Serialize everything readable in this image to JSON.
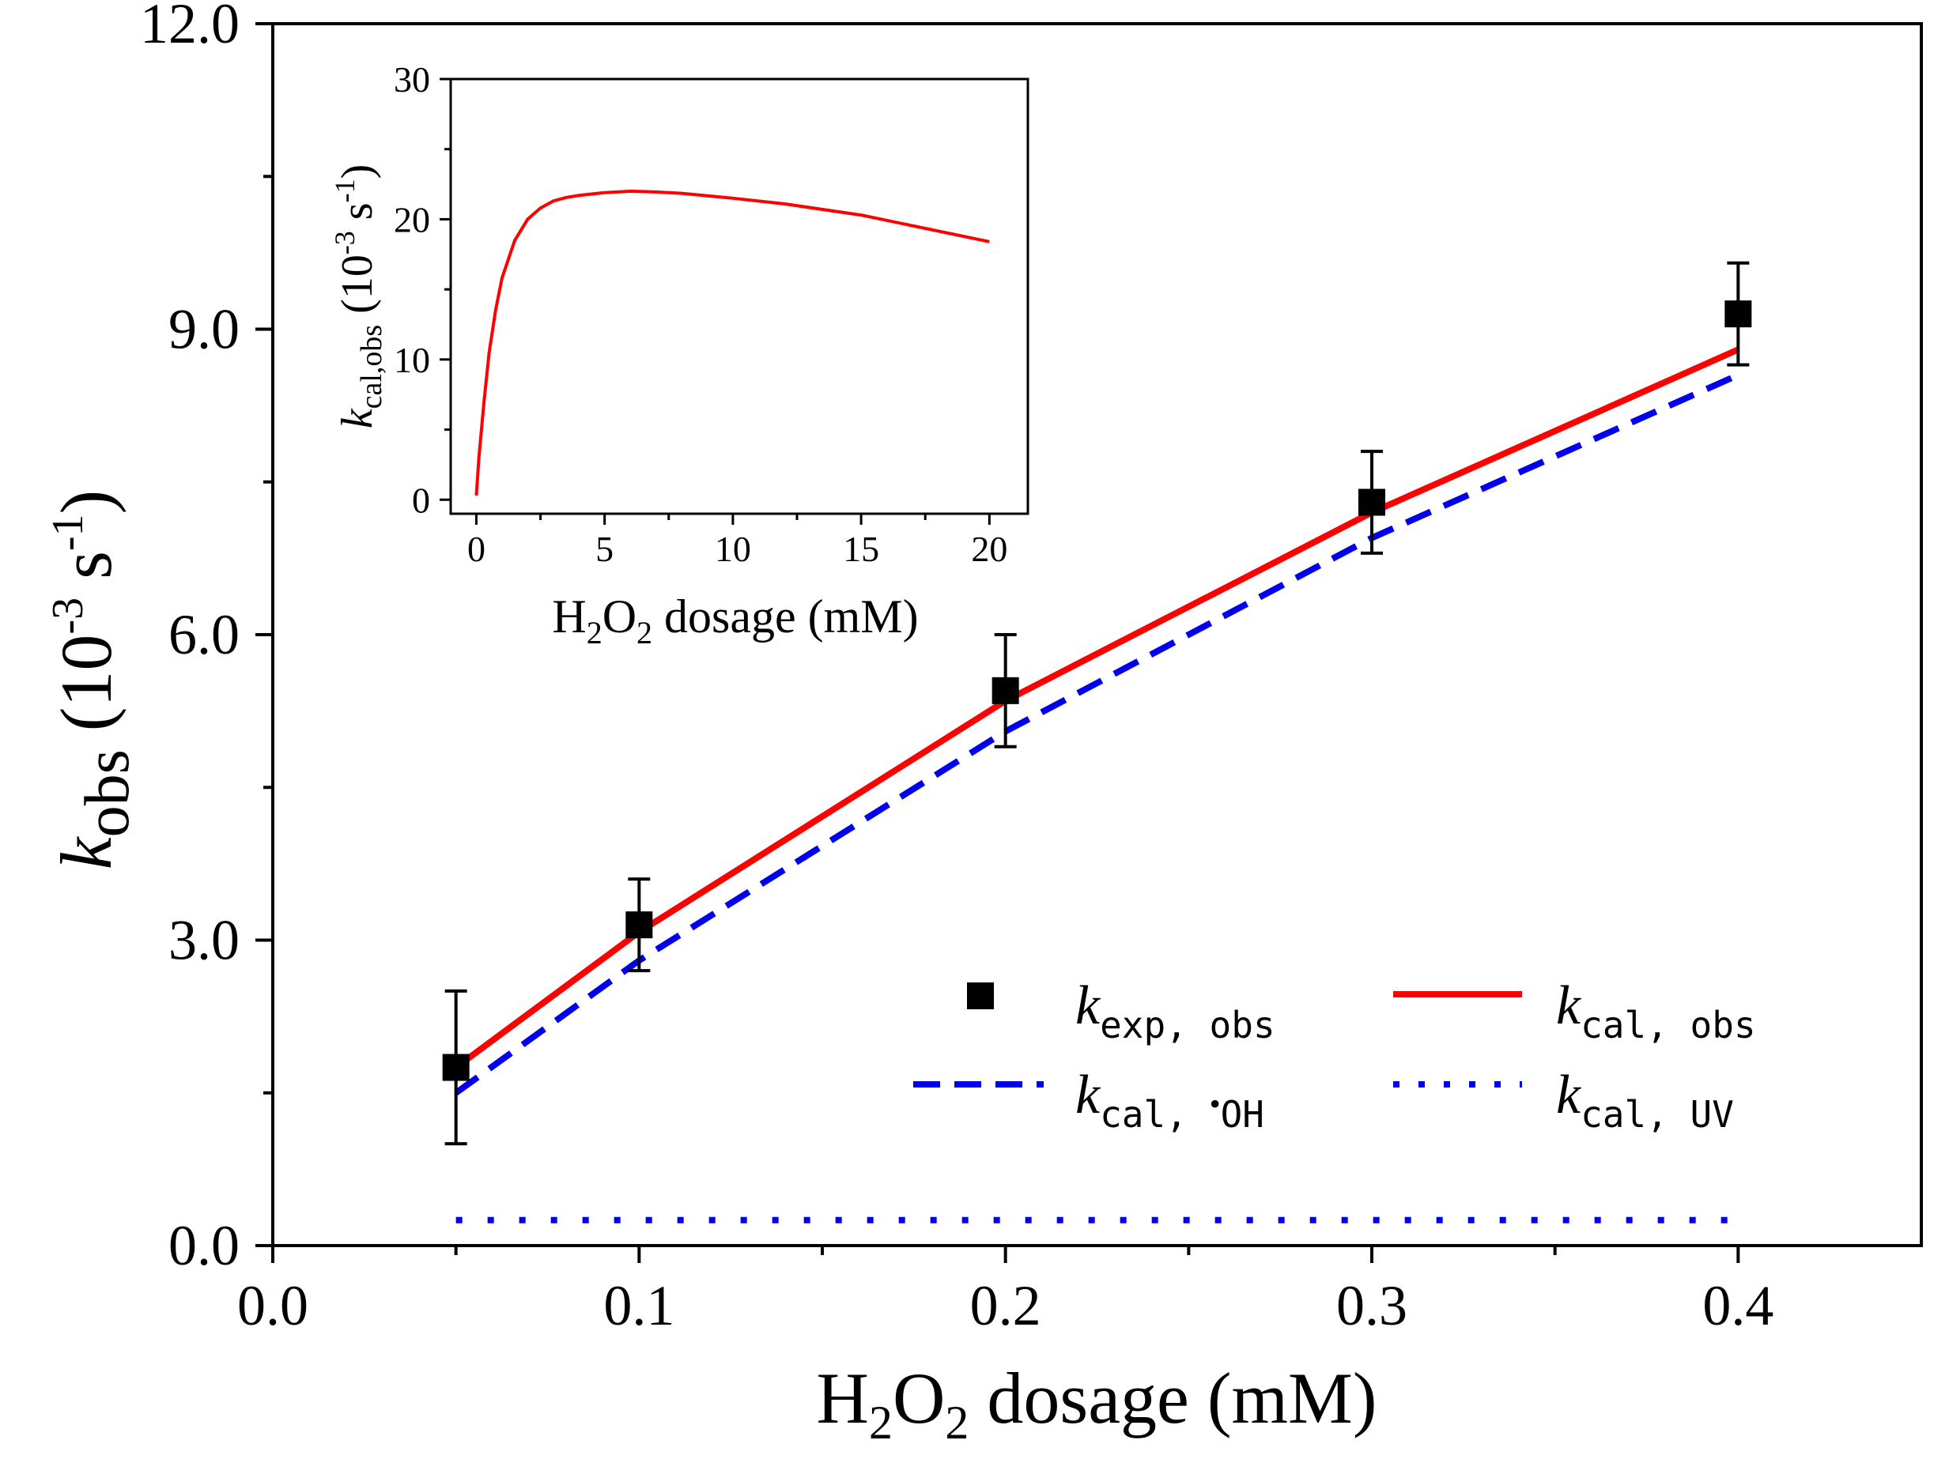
{
  "colors": {
    "red": "#ff0000",
    "blue": "#0000ee",
    "black": "#000000"
  },
  "chart_data": [
    {
      "type": "scatter",
      "xlim": [
        0.0,
        0.45
      ],
      "ylim": [
        0.0,
        12.0
      ],
      "x_ticks": [
        "0.0",
        "0.1",
        "0.2",
        "0.3",
        "0.4"
      ],
      "y_ticks": [
        "0.0",
        "3.0",
        "6.0",
        "9.0",
        "12.0"
      ],
      "xlabel": {
        "a": "H",
        "sub1": "2",
        "b": "O",
        "sub2": "2",
        "c": " dosage (mM)"
      },
      "ylabel": {
        "k": "k",
        "sub": "obs",
        "open": " (10",
        "exp": "-3",
        "mid": " s",
        "exp2": "-1",
        "close": ")"
      },
      "series": [
        {
          "name": {
            "k": "k",
            "sub": "exp, obs"
          },
          "style": "marker",
          "color": "#000000",
          "x": [
            0.05,
            0.1,
            0.2,
            0.3,
            0.4
          ],
          "y": [
            1.75,
            3.15,
            5.45,
            7.3,
            9.15
          ],
          "err": [
            0.75,
            0.45,
            0.55,
            0.5,
            0.5
          ]
        },
        {
          "name": {
            "k": "k",
            "sub": "cal, obs"
          },
          "style": "solid",
          "color": "#ff0000",
          "x": [
            0.05,
            0.1,
            0.2,
            0.3,
            0.4
          ],
          "y": [
            1.75,
            3.08,
            5.35,
            7.2,
            8.8
          ]
        },
        {
          "name": {
            "k": "k",
            "sub": "cal, ",
            "dot": "•",
            "sub2": "OH"
          },
          "style": "dashed",
          "color": "#0000ee",
          "x": [
            0.05,
            0.1,
            0.2,
            0.3,
            0.4
          ],
          "y": [
            1.5,
            2.8,
            5.05,
            6.95,
            8.55
          ]
        },
        {
          "name": {
            "k": "k",
            "sub": "cal, UV"
          },
          "style": "dotted",
          "color": "#0000ee",
          "x": [
            0.05,
            0.4
          ],
          "y": [
            0.25,
            0.25
          ]
        }
      ]
    },
    {
      "type": "line",
      "xlim": [
        -1,
        21.5
      ],
      "ylim": [
        -1,
        30
      ],
      "x_ticks": [
        "0",
        "5",
        "10",
        "15",
        "20"
      ],
      "y_ticks": [
        "0",
        "10",
        "20",
        "30"
      ],
      "xlabel": {
        "a": "H",
        "sub1": "2",
        "b": "O",
        "sub2": "2",
        "c": " dosage (mM)"
      },
      "ylabel": {
        "k": "k",
        "sub": "cal,obs",
        "open": " (10",
        "exp": "-3",
        "mid": " s",
        "exp2": "-1",
        "close": ")"
      },
      "series": [
        {
          "style": "solid",
          "color": "#ff0000",
          "x": [
            0,
            0.1,
            0.3,
            0.5,
            0.75,
            1,
            1.5,
            2,
            2.5,
            3,
            3.5,
            4,
            5,
            6,
            7,
            8,
            10,
            12,
            15,
            20
          ],
          "y": [
            0.3,
            3.0,
            7.0,
            10.5,
            13.5,
            15.8,
            18.5,
            20.0,
            20.8,
            21.3,
            21.55,
            21.7,
            21.9,
            22.0,
            21.95,
            21.85,
            21.5,
            21.1,
            20.3,
            18.4
          ]
        }
      ]
    }
  ]
}
